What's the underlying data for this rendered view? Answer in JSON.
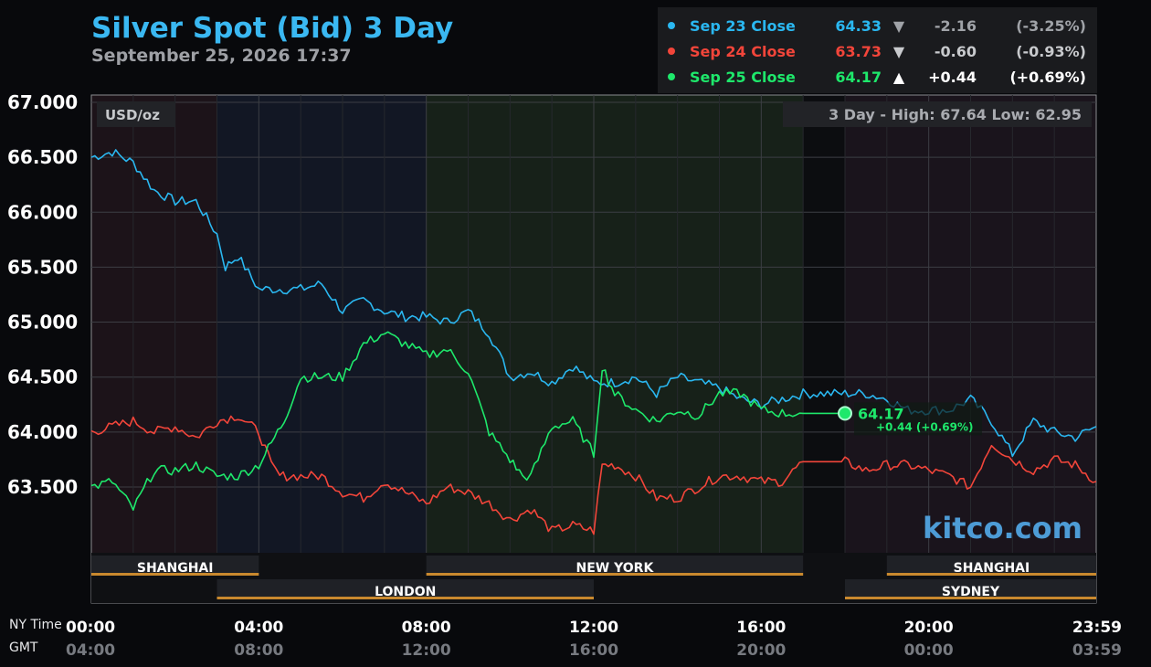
{
  "header": {
    "title": "Silver Spot (Bid) 3 Day",
    "date": "September 25, 2026 17:37"
  },
  "legend": [
    {
      "label": "Sep 23 Close",
      "price": "64.33",
      "arrow": "▼",
      "change": "-2.16",
      "pct": "(-3.25%)",
      "color": "#2ab7f0",
      "num_color": "#a0a3a8"
    },
    {
      "label": "Sep 24 Close",
      "price": "63.73",
      "arrow": "▼",
      "change": "-0.60",
      "pct": "(-0.93%)",
      "color": "#f2453a",
      "num_color": "#c8cacd"
    },
    {
      "label": "Sep 25 Close",
      "price": "64.17",
      "arrow": "▲",
      "change": "+0.44",
      "pct": "(+0.69%)",
      "color": "#1ee86b",
      "num_color": "#ffffff"
    }
  ],
  "unit_label": "USD/oz",
  "high_low": "3 Day - High: 67.64  Low: 62.95",
  "watermark": "kitco.com",
  "last_marker": {
    "price": "64.17",
    "change": "+0.44 (+0.69%)"
  },
  "time_labels": {
    "ny": "NY Time",
    "gmt": "GMT"
  },
  "sessions": [
    {
      "name": "SHANGHAI",
      "start": 0,
      "end": 4
    },
    {
      "name": "LONDON",
      "start": 3,
      "end": 12
    },
    {
      "name": "NEW YORK",
      "start": 8,
      "end": 17
    },
    {
      "name": "SYDNEY",
      "start": 18,
      "end": 24
    },
    {
      "name": "SHANGHAI",
      "start": 19,
      "end": 24
    }
  ],
  "chart_data": {
    "type": "line",
    "title": "Silver Spot (Bid) 3 Day",
    "ylabel": "USD/oz",
    "ylim": [
      63.0,
      67.0
    ],
    "yticks": [
      "67.000",
      "66.500",
      "66.000",
      "65.500",
      "65.000",
      "64.500",
      "64.000",
      "63.500"
    ],
    "ytick_values": [
      67.0,
      66.5,
      66.0,
      65.5,
      65.0,
      64.5,
      64.0,
      63.5
    ],
    "xlim": [
      0,
      24
    ],
    "xticks_ny": [
      "00:00",
      "04:00",
      "08:00",
      "12:00",
      "16:00",
      "20:00",
      "23:59"
    ],
    "xticks_gmt": [
      "04:00",
      "08:00",
      "12:00",
      "16:00",
      "20:00",
      "00:00",
      "03:59"
    ],
    "xtick_values": [
      0,
      4,
      8,
      12,
      16,
      20,
      24
    ],
    "grid": true,
    "series": [
      {
        "name": "Sep 23",
        "color": "#2ab7f0",
        "x": [
          0,
          0.5,
          1,
          1.5,
          2,
          2.5,
          3,
          3.2,
          3.5,
          4,
          4.5,
          5,
          5.5,
          6,
          6.5,
          7,
          7.5,
          8,
          8.5,
          9,
          9.5,
          10,
          10.5,
          11,
          11.5,
          12,
          12.5,
          13,
          13.5,
          14,
          14.5,
          15,
          15.5,
          16,
          16.5,
          17,
          17.5,
          18,
          18.5,
          19,
          19.5,
          20,
          20.5,
          21,
          21.5,
          22,
          22.5,
          23,
          23.5,
          24
        ],
        "y": [
          66.5,
          66.55,
          66.45,
          66.2,
          66.1,
          66.1,
          65.8,
          65.5,
          65.6,
          65.3,
          65.3,
          65.3,
          65.35,
          65.1,
          65.2,
          65.1,
          65.05,
          65.05,
          65.0,
          65.1,
          64.9,
          64.5,
          64.55,
          64.45,
          64.6,
          64.45,
          64.45,
          64.5,
          64.35,
          64.5,
          64.45,
          64.4,
          64.3,
          64.25,
          64.3,
          64.35,
          64.35,
          64.35,
          64.35,
          64.3,
          64.2,
          64.2,
          64.2,
          64.3,
          64.1,
          63.8,
          64.1,
          64.0,
          63.95,
          64.05
        ]
      },
      {
        "name": "Sep 24",
        "color": "#f2453a",
        "x": [
          0,
          0.5,
          1,
          1.5,
          2,
          2.5,
          3,
          3.5,
          4,
          4.3,
          4.5,
          5,
          5.5,
          6,
          6.5,
          7,
          7.5,
          8,
          8.5,
          9,
          9.5,
          10,
          10.5,
          11,
          11.5,
          12,
          12.2,
          12.5,
          13,
          13.5,
          14,
          14.5,
          15,
          15.5,
          16,
          16.5,
          17,
          17.5,
          18,
          18.5,
          19,
          19.5,
          20,
          20.5,
          21,
          21.5,
          22,
          22.5,
          23,
          23.5,
          24
        ],
        "y": [
          64.0,
          64.05,
          64.1,
          64.0,
          64.05,
          63.95,
          64.1,
          64.15,
          64.0,
          63.7,
          63.6,
          63.6,
          63.6,
          63.45,
          63.4,
          63.55,
          63.45,
          63.35,
          63.5,
          63.45,
          63.35,
          63.2,
          63.3,
          63.1,
          63.15,
          63.1,
          63.7,
          63.7,
          63.6,
          63.4,
          63.4,
          63.5,
          63.6,
          63.6,
          63.55,
          63.55,
          63.73,
          63.73,
          63.73,
          63.65,
          63.7,
          63.7,
          63.65,
          63.6,
          63.5,
          63.9,
          63.75,
          63.65,
          63.75,
          63.7,
          63.55
        ]
      },
      {
        "name": "Sep 25",
        "color": "#1ee86b",
        "x": [
          0,
          0.5,
          1,
          1.5,
          2,
          2.5,
          3,
          3.5,
          4,
          4.3,
          4.6,
          5,
          5.5,
          6,
          6.5,
          7,
          7.5,
          8,
          8.5,
          9,
          9.5,
          10,
          10.3,
          10.5,
          11,
          11.5,
          12,
          12.2,
          12.5,
          13,
          13.5,
          14,
          14.5,
          15,
          15.5,
          16,
          16.5,
          17,
          17.5,
          18
        ],
        "y": [
          63.5,
          63.55,
          63.3,
          63.65,
          63.65,
          63.7,
          63.6,
          63.6,
          63.7,
          63.9,
          64.1,
          64.5,
          64.5,
          64.5,
          64.8,
          64.9,
          64.8,
          64.7,
          64.75,
          64.55,
          64.0,
          63.75,
          63.6,
          63.6,
          64.05,
          64.1,
          63.8,
          64.6,
          64.35,
          64.2,
          64.1,
          64.2,
          64.15,
          64.35,
          64.35,
          64.2,
          64.17,
          64.17,
          64.17,
          64.17
        ]
      }
    ]
  }
}
